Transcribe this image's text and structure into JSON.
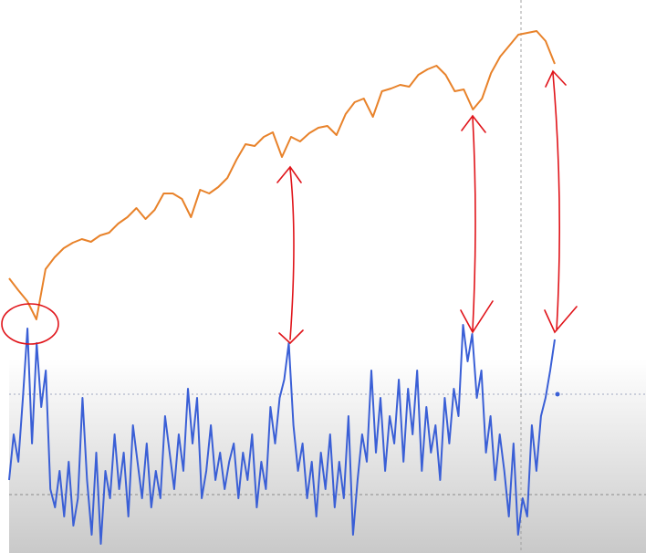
{
  "chart_data": {
    "type": "line",
    "series": [
      {
        "color": "#e8822a",
        "values": [
          301,
          288,
          276,
          256,
          311,
          324,
          334,
          340,
          344,
          341,
          348,
          351,
          361,
          368,
          378,
          366,
          376,
          394,
          394,
          388,
          368,
          398,
          394,
          401,
          411,
          431,
          448,
          446,
          456,
          461,
          434,
          456,
          451,
          460,
          466,
          468,
          458,
          481,
          494,
          498,
          478,
          506,
          509,
          513,
          511,
          524,
          530,
          534,
          524,
          506,
          508,
          486,
          498,
          526,
          544,
          556,
          568,
          570,
          572,
          561,
          536
        ]
      },
      {
        "color": "#3a5fd6",
        "values": [
          80,
          130,
          100,
          170,
          246,
          120,
          230,
          160,
          200,
          70,
          50,
          90,
          40,
          100,
          30,
          60,
          170,
          80,
          20,
          110,
          10,
          90,
          60,
          130,
          70,
          110,
          40,
          140,
          100,
          60,
          120,
          50,
          90,
          60,
          150,
          110,
          70,
          130,
          90,
          180,
          120,
          170,
          60,
          90,
          140,
          80,
          110,
          70,
          100,
          120,
          60,
          110,
          80,
          130,
          50,
          100,
          70,
          160,
          120,
          170,
          190,
          230,
          140,
          90,
          120,
          60,
          100,
          40,
          110,
          70,
          130,
          50,
          100,
          60,
          150,
          20,
          80,
          130,
          100,
          200,
          110,
          170,
          90,
          150,
          120,
          190,
          100,
          180,
          130,
          200,
          90,
          160,
          110,
          140,
          80,
          170,
          120,
          180,
          150,
          250,
          210,
          240,
          170,
          200,
          110,
          150,
          80,
          130,
          90,
          40,
          120,
          20,
          60,
          40,
          140,
          90,
          150,
          170,
          200,
          234
        ]
      }
    ],
    "ylim": [
      0,
      606
    ]
  }
}
